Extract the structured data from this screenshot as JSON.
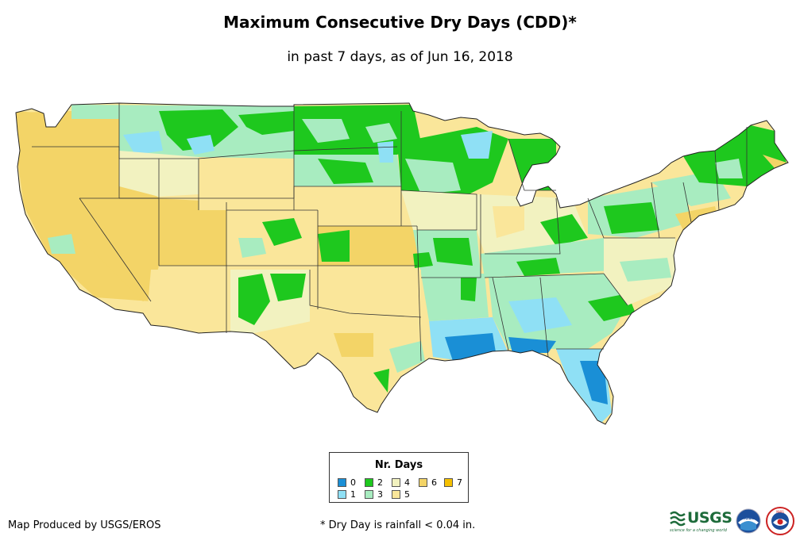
{
  "title": "Maximum Consecutive Dry Days (CDD)*",
  "subtitle": "in past 7 days, as of Jun 16, 2018",
  "legend": {
    "title": "Nr. Days",
    "items": [
      {
        "label": "0",
        "color": "#1a8fd6"
      },
      {
        "label": "1",
        "color": "#8fe0f5"
      },
      {
        "label": "2",
        "color": "#1ec81e"
      },
      {
        "label": "3",
        "color": "#a8ecc0"
      },
      {
        "label": "4",
        "color": "#f2f2c0"
      },
      {
        "label": "5",
        "color": "#fae69a"
      },
      {
        "label": "6",
        "color": "#f3d467"
      },
      {
        "label": "7",
        "color": "#f5c000"
      }
    ]
  },
  "credit": "Map Produced by USGS/EROS",
  "footnote": "* Dry Day is rainfall < 0.04 in.",
  "logos": {
    "usgs": "USGS",
    "usgs_tagline": "science for a changing world",
    "noaa": "noaa",
    "nws": "NWS"
  }
}
